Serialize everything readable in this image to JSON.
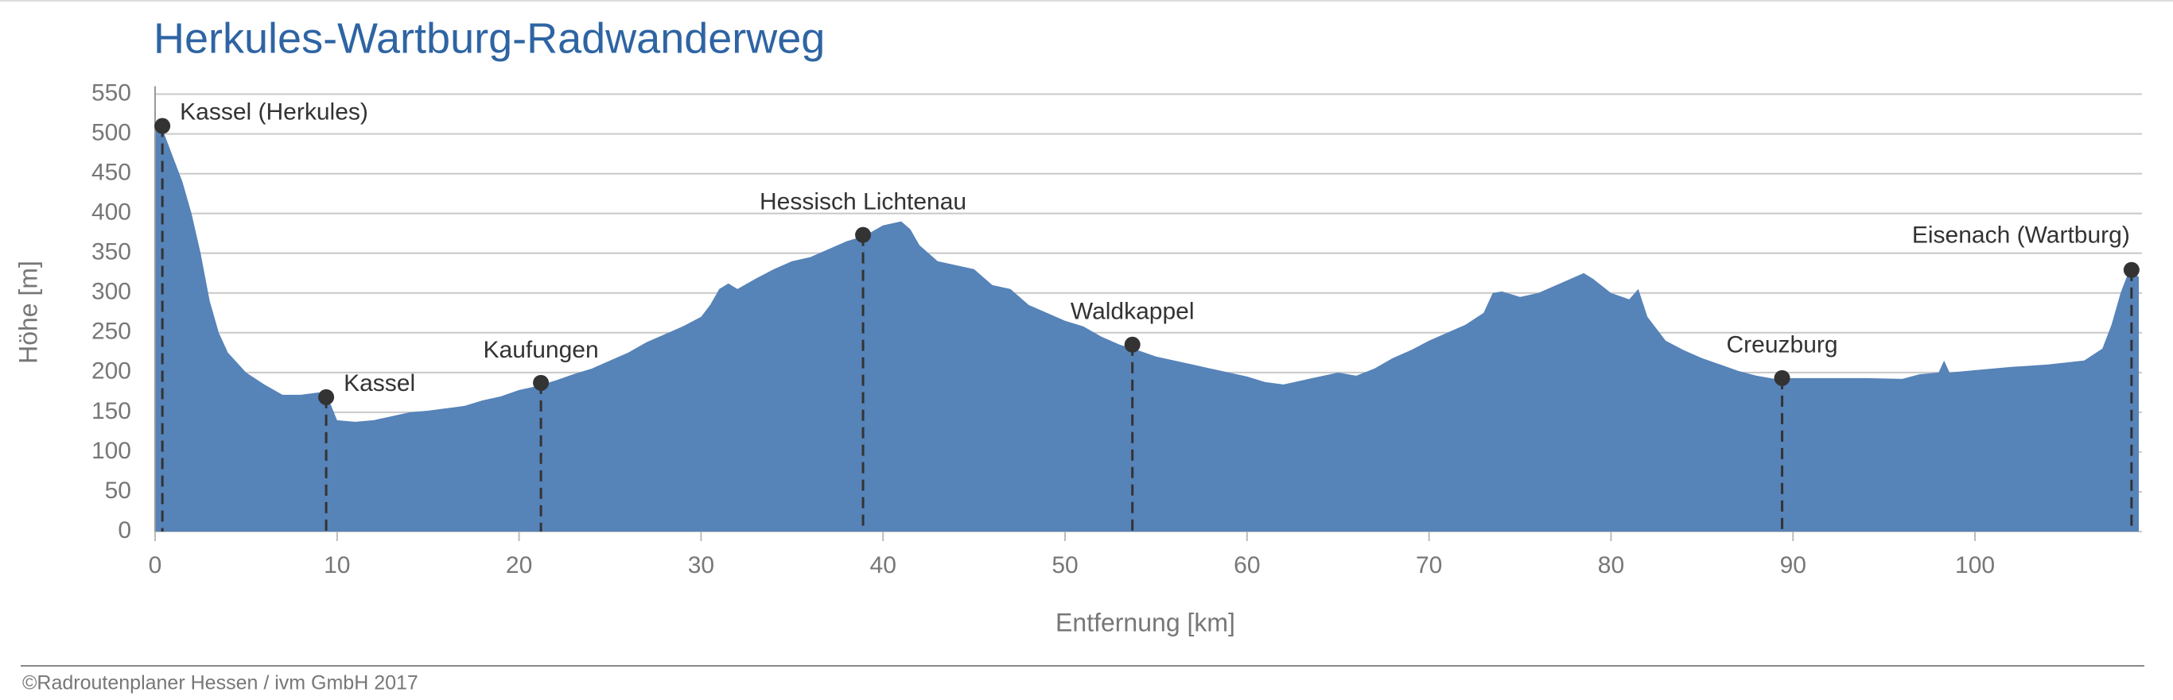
{
  "chart_data": {
    "type": "area",
    "title": "Herkules-Wartburg-Radwanderweg",
    "x_label": "Entfernung [km]",
    "y_label": "Höhe [m]",
    "color": "#5683b8",
    "grid": true,
    "x": [
      0,
      0.5,
      1,
      1.5,
      2,
      2.5,
      3,
      3.5,
      4,
      5,
      6,
      7,
      8,
      9,
      9.5,
      10,
      11,
      12,
      13,
      14,
      15,
      16,
      17,
      18,
      19,
      20,
      21,
      22,
      23,
      24,
      25,
      26,
      27,
      28,
      29,
      30,
      30.5,
      31,
      31.5,
      32,
      33,
      34,
      35,
      36,
      37,
      38,
      39,
      40,
      41,
      41.5,
      42,
      43,
      44,
      45,
      46,
      47,
      48,
      49,
      50,
      51,
      52,
      53,
      54,
      55,
      56,
      57,
      58,
      59,
      60,
      61,
      62,
      63,
      64,
      65,
      66,
      67,
      68,
      69,
      70,
      71,
      72,
      73,
      73.5,
      74,
      75,
      76,
      77,
      78,
      78.5,
      79,
      80,
      81,
      81.5,
      82,
      83,
      84,
      85,
      86,
      87,
      88,
      89,
      90,
      92,
      94,
      96,
      97,
      98,
      98.3,
      98.6,
      100,
      102,
      104,
      106,
      107,
      107.5,
      108,
      108.5,
      109
    ],
    "y": [
      510,
      500,
      470,
      440,
      400,
      350,
      290,
      250,
      225,
      200,
      185,
      172,
      172,
      175,
      168,
      140,
      138,
      140,
      145,
      150,
      152,
      155,
      158,
      165,
      170,
      178,
      183,
      190,
      198,
      205,
      215,
      225,
      238,
      248,
      258,
      270,
      285,
      305,
      312,
      305,
      318,
      330,
      340,
      345,
      355,
      365,
      372,
      385,
      390,
      380,
      360,
      340,
      335,
      330,
      310,
      305,
      285,
      275,
      265,
      258,
      245,
      235,
      228,
      220,
      215,
      210,
      205,
      200,
      195,
      188,
      185,
      190,
      195,
      200,
      196,
      205,
      218,
      228,
      240,
      250,
      260,
      275,
      300,
      302,
      295,
      300,
      310,
      320,
      325,
      318,
      300,
      292,
      305,
      270,
      240,
      228,
      218,
      210,
      202,
      196,
      192,
      193,
      193,
      193,
      192,
      198,
      200,
      215,
      200,
      203,
      207,
      210,
      215,
      230,
      260,
      300,
      330,
      320
    ],
    "annotations": [
      {
        "label": "Kassel (Herkules)",
        "x": 0.4,
        "y": 510
      },
      {
        "label": "Kassel",
        "x": 9.4,
        "y": 169
      },
      {
        "label": "Kaufungen",
        "x": 21.2,
        "y": 187
      },
      {
        "label": "Hessisch Lichtenau",
        "x": 38.9,
        "y": 373
      },
      {
        "label": "Waldkappel",
        "x": 53.7,
        "y": 235
      },
      {
        "label": "Creuzburg",
        "x": 89.4,
        "y": 193
      },
      {
        "label": "Eisenach (Wartburg)",
        "x": 108.6,
        "y": 329
      }
    ],
    "xlim": [
      0,
      109
    ],
    "ylim": [
      0,
      550
    ],
    "xticks": [
      0,
      10,
      20,
      30,
      40,
      50,
      60,
      70,
      80,
      90,
      100
    ],
    "yticks": [
      0,
      50,
      100,
      150,
      200,
      250,
      300,
      350,
      400,
      450,
      500,
      550
    ]
  },
  "footer": "©Radroutenplaner Hessen / ivm GmbH 2017"
}
